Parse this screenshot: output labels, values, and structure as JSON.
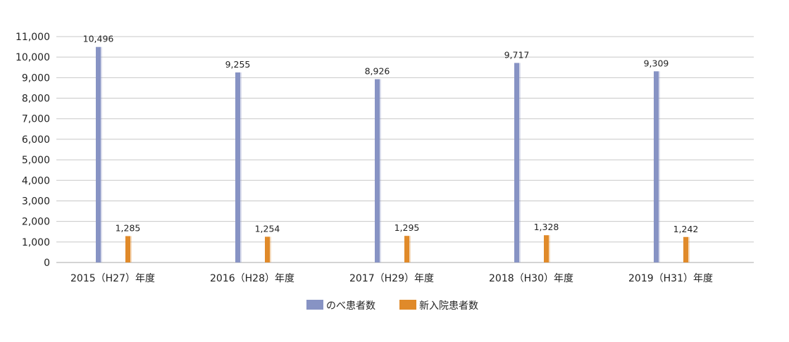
{
  "chart_data": {
    "type": "bar",
    "categories": [
      "2015（H27）年度",
      "2016（H28）年度",
      "2017（H29）年度",
      "2018（H30）年度",
      "2019（H31）年度"
    ],
    "series": [
      {
        "name": "のべ患者数",
        "values": [
          10496,
          9255,
          8926,
          9717,
          9309
        ],
        "labels": [
          "10,496",
          "9,255",
          "8,926",
          "9,717",
          "9,309"
        ],
        "color": "#8793c4"
      },
      {
        "name": "新入院患者数",
        "values": [
          1285,
          1254,
          1295,
          1328,
          1242
        ],
        "labels": [
          "1,285",
          "1,254",
          "1,295",
          "1,328",
          "1,242"
        ],
        "color": "#e08a2a"
      }
    ],
    "ylim": [
      0,
      11000
    ],
    "yticks": [
      0,
      1000,
      2000,
      3000,
      4000,
      5000,
      6000,
      7000,
      8000,
      9000,
      10000,
      11000
    ],
    "ytick_labels": [
      "0",
      "1,000",
      "2,000",
      "3,000",
      "4,000",
      "5,000",
      "6,000",
      "7,000",
      "8,000",
      "9,000",
      "10,000",
      "11,000"
    ],
    "title": "",
    "xlabel": "",
    "ylabel": "",
    "grid": true,
    "legend_position": "bottom-center"
  }
}
